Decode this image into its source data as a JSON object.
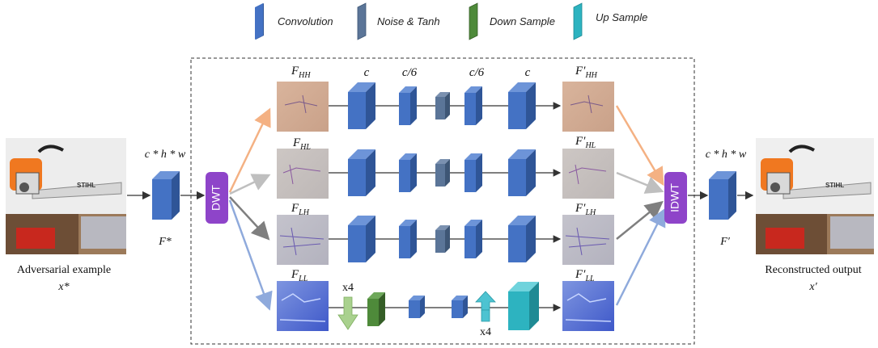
{
  "legend": {
    "convolution": "Convolution",
    "noise_tanh": "Noise & Tanh",
    "down_sample": "Down Sample",
    "up_sample": "Up Sample"
  },
  "colors": {
    "convolution": "#4472c4",
    "noise_tanh": "#5b7598",
    "down_sample": "#4e8a3a",
    "up_sample": "#2db3c0",
    "wavelet_block": "#8e44c9",
    "arrow_hh": "#f4b183",
    "arrow_hl": "#bfbfbf",
    "arrow_lh": "#7f7f7f",
    "arrow_ll": "#8faadc",
    "down_arrow": "#a9d18e",
    "up_arrow": "#4dc3d1"
  },
  "input": {
    "caption": "Adversarial  example",
    "symbol": "x*",
    "shape": "c * h * w",
    "feature": "F*"
  },
  "output": {
    "caption": "Reconstructed output",
    "symbol": "x′",
    "shape": "c * h * w",
    "feature": "F′"
  },
  "dwt_label": "DWT",
  "idwt_label": "IDWT",
  "channel_labels": [
    "c",
    "c/6",
    "c/6",
    "c"
  ],
  "bands": [
    {
      "in": "F_HH",
      "out": "F′_HH"
    },
    {
      "in": "F_HL",
      "out": "F′_HL"
    },
    {
      "in": "F_LH",
      "out": "F′_LH"
    },
    {
      "in": "F_LL",
      "out": "F′_LL"
    }
  ],
  "down_factor": "x4",
  "up_factor": "x4"
}
